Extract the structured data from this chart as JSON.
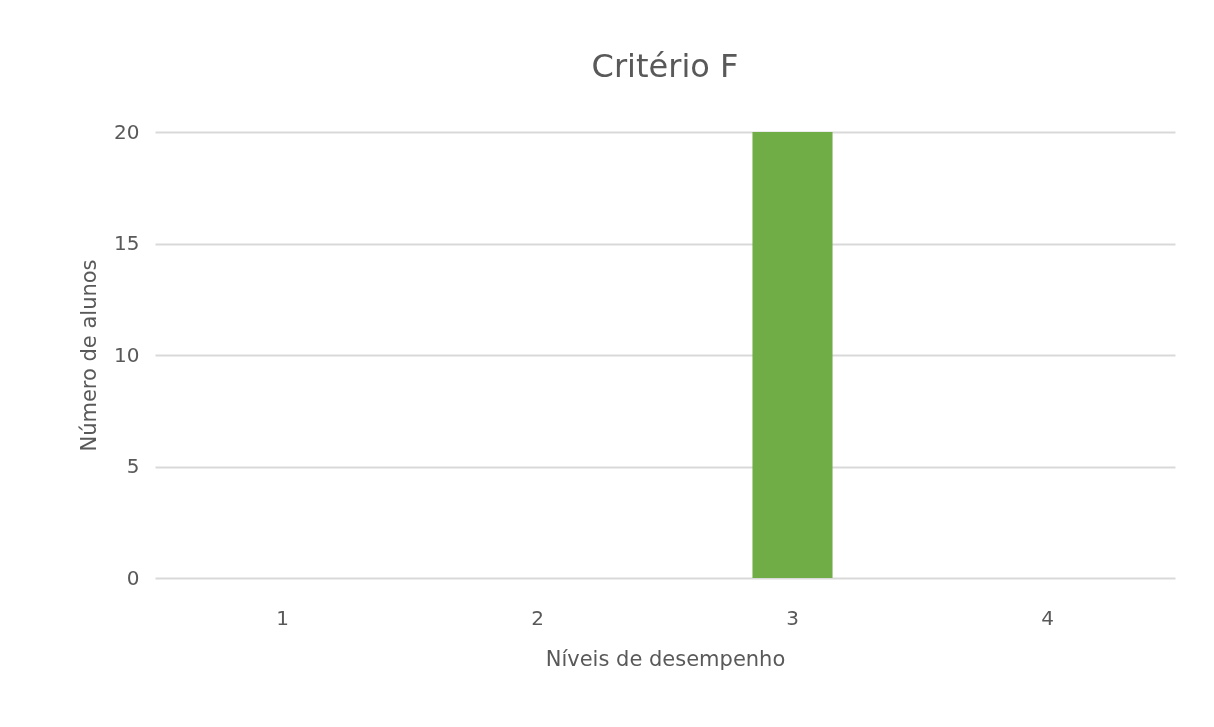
{
  "chart_data": {
    "type": "bar",
    "title": "Critério F",
    "xlabel": "Níveis de desempenho",
    "ylabel": "Número de alunos",
    "categories": [
      "1",
      "2",
      "3",
      "4"
    ],
    "series": [
      {
        "color": "#70ad47",
        "values": [
          0,
          0,
          20,
          0
        ]
      }
    ],
    "ylim": [
      0,
      20
    ],
    "yticks": [
      0,
      5,
      10,
      15,
      20
    ],
    "grid": "y"
  }
}
